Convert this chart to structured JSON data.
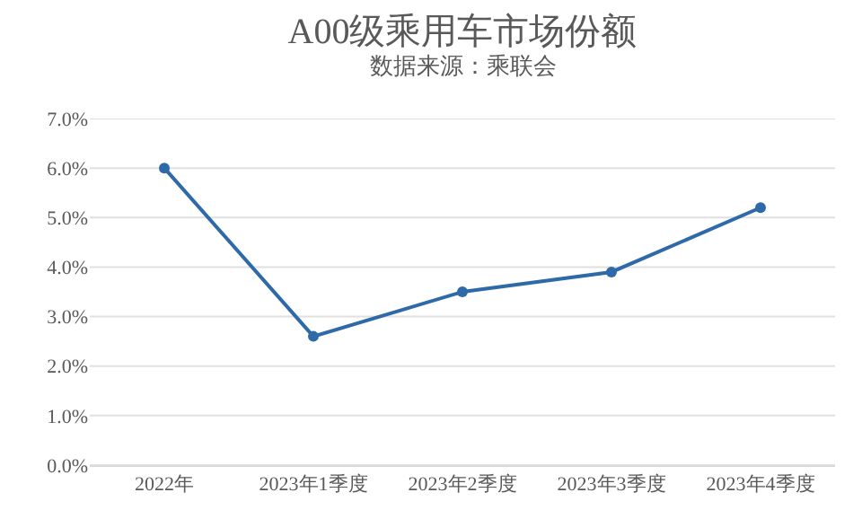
{
  "chart_data": {
    "type": "line",
    "title": "A00级乘用车市场份额",
    "subtitle": "数据来源：乘联会",
    "categories": [
      "2022年",
      "2023年1季度",
      "2023年2季度",
      "2023年3季度",
      "2023年4季度"
    ],
    "series": [
      {
        "color": "#2e6aa8",
        "values": [
          6.0,
          2.6,
          3.5,
          3.9,
          5.2
        ]
      }
    ],
    "ylim": [
      0,
      7
    ],
    "yticks": [
      {
        "value": 0,
        "label": "0.0%"
      },
      {
        "value": 1,
        "label": "1.0%"
      },
      {
        "value": 2,
        "label": "2.0%"
      },
      {
        "value": 3,
        "label": "3.0%"
      },
      {
        "value": 4,
        "label": "4.0%"
      },
      {
        "value": 5,
        "label": "5.0%"
      },
      {
        "value": 6,
        "label": "6.0%"
      },
      {
        "value": 7,
        "label": "7.0%"
      }
    ],
    "grid": "y",
    "marker": "circle",
    "line_style": "solid"
  }
}
